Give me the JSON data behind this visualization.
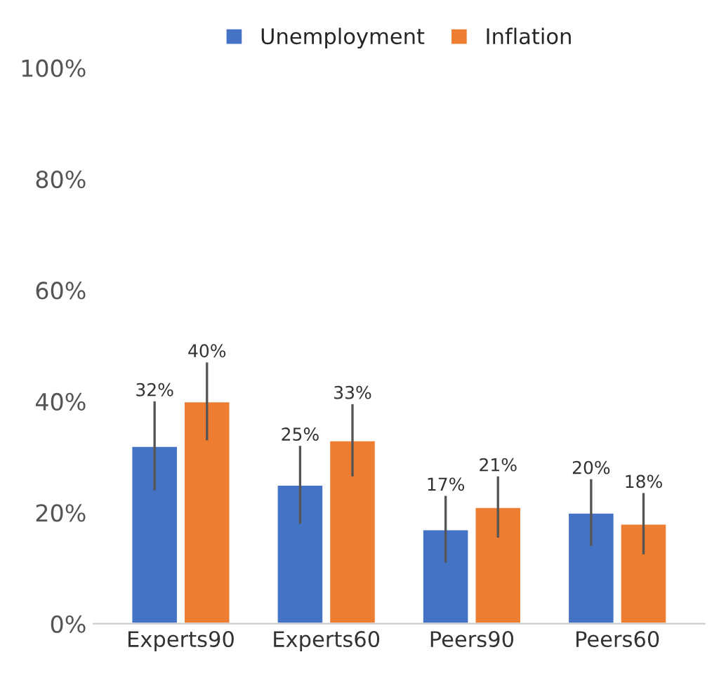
{
  "chart_data": {
    "type": "bar",
    "categories": [
      "Experts90",
      "Experts60",
      "Peers90",
      "Peers60"
    ],
    "series": [
      {
        "name": "Unemployment",
        "color": "#4472c4",
        "values": [
          32,
          25,
          17,
          20
        ],
        "errors": [
          8,
          7,
          6,
          6
        ],
        "value_labels": [
          "32%",
          "25%",
          "17%",
          "20%"
        ]
      },
      {
        "name": "Inflation",
        "color": "#ed7d31",
        "values": [
          40,
          33,
          21,
          18
        ],
        "errors": [
          7,
          6.5,
          5.5,
          5.5
        ],
        "value_labels": [
          "40%",
          "33%",
          "21%",
          "18%"
        ]
      }
    ],
    "ylim": [
      0,
      100
    ],
    "yticks": [
      {
        "value": 0,
        "label": "0%"
      },
      {
        "value": 20,
        "label": "20%"
      },
      {
        "value": 40,
        "label": "40%"
      },
      {
        "value": 60,
        "label": "60%"
      },
      {
        "value": 80,
        "label": "80%"
      },
      {
        "value": 100,
        "label": "100%"
      }
    ],
    "legend": "top",
    "grid": false
  }
}
